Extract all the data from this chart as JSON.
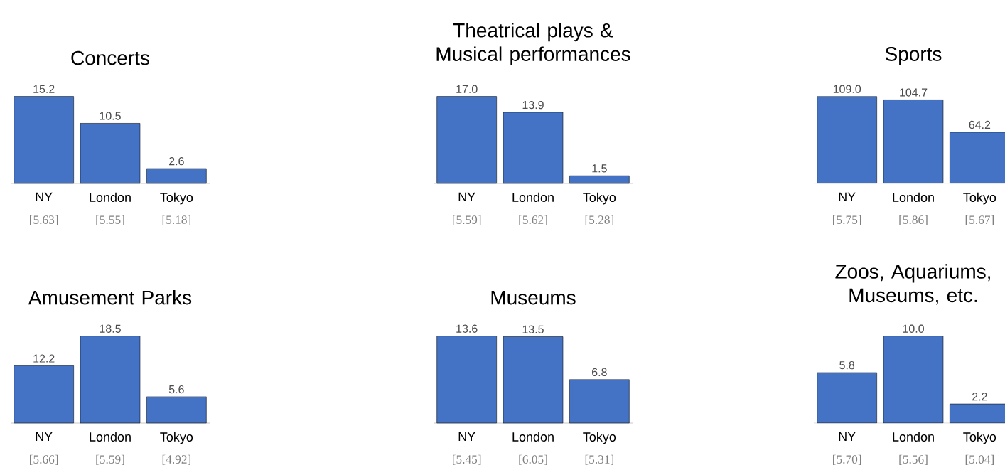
{
  "chart_data": [
    {
      "type": "bar",
      "title": "Concerts",
      "categories": [
        "NY",
        "London",
        "Tokyo"
      ],
      "values": [
        15.2,
        10.5,
        2.6
      ],
      "value_labels": [
        "15.2",
        "10.5",
        "2.6"
      ],
      "color": "#4472c4",
      "annotations": [
        "[5.63]",
        "[5.55]",
        "[5.18]"
      ]
    },
    {
      "type": "bar",
      "title": "Theatrical plays & Musical performances",
      "categories": [
        "NY",
        "London",
        "Tokyo"
      ],
      "values": [
        17.0,
        13.9,
        1.5
      ],
      "value_labels": [
        "17.0",
        "13.9",
        "1.5"
      ],
      "color": "#4472c4",
      "annotations": [
        "[5.59]",
        "[5.62]",
        "[5.28]"
      ]
    },
    {
      "type": "bar",
      "title": "Sports",
      "categories": [
        "NY",
        "London",
        "Tokyo"
      ],
      "values": [
        109.0,
        104.7,
        64.2
      ],
      "value_labels": [
        "109.0",
        "104.7",
        "64.2"
      ],
      "color": "#4472c4",
      "annotations": [
        "[5.75]",
        "[5.86]",
        "[5.67]"
      ]
    },
    {
      "type": "bar",
      "title": "Amusement Parks",
      "categories": [
        "NY",
        "London",
        "Tokyo"
      ],
      "values": [
        12.2,
        18.5,
        5.6
      ],
      "value_labels": [
        "12.2",
        "18.5",
        "5.6"
      ],
      "color": "#4472c4",
      "annotations": [
        "[5.66]",
        "[5.59]",
        "[4.92]"
      ]
    },
    {
      "type": "bar",
      "title": "Museums",
      "categories": [
        "NY",
        "London",
        "Tokyo"
      ],
      "values": [
        13.6,
        13.5,
        6.8
      ],
      "value_labels": [
        "13.6",
        "13.5",
        "6.8"
      ],
      "color": "#4472c4",
      "annotations": [
        "[5.45]",
        "[6.05]",
        "[5.31]"
      ]
    },
    {
      "type": "bar",
      "title": "Zoos, Aquariums, Museums, etc.",
      "categories": [
        "NY",
        "London",
        "Tokyo"
      ],
      "values": [
        5.8,
        10.0,
        2.2
      ],
      "value_labels": [
        "5.8",
        "10.0",
        "2.2"
      ],
      "color": "#4472c4",
      "annotations": [
        "[5.70]",
        "[5.56]",
        "[5.04]"
      ]
    }
  ]
}
